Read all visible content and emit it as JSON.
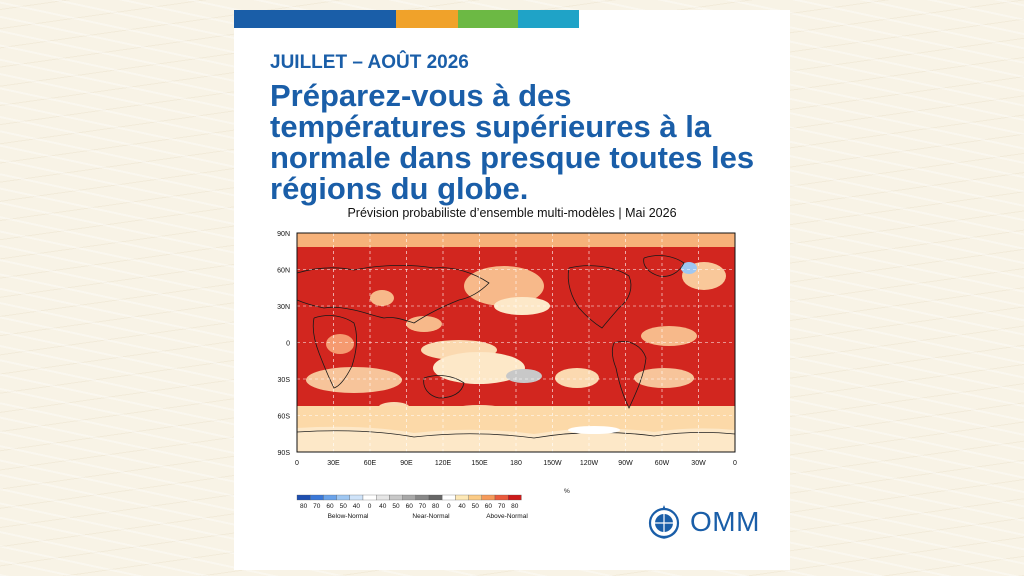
{
  "colors": {
    "brand_blue": "#1a5ea8",
    "stripe": [
      "#1a5ea8",
      "#f0a22a",
      "#6cb944",
      "#1fa3c7"
    ],
    "above_normal": [
      "#fde8b6",
      "#fbcb86",
      "#f69a5a",
      "#ea5a3c",
      "#cc1a1a"
    ],
    "near_normal": [
      "#e6e6e6",
      "#c8c8c8",
      "#a8a8a8",
      "#888888",
      "#666666"
    ],
    "below_normal": [
      "#1e4fb0",
      "#3a78d8",
      "#6aa3ea",
      "#9fc7f2",
      "#cfe3f9"
    ]
  },
  "header": {
    "period": "JUILLET – AOÛT 2026",
    "headline": "Préparez-vous à des températures supérieures à la normale dans presque toutes les régions du globe."
  },
  "map": {
    "subtitle": "Prévision probabiliste d’ensemble multi-modèles | Mai 2026",
    "lat_labels": [
      "90N",
      "60N",
      "30N",
      "0",
      "30S",
      "60S",
      "90S"
    ],
    "lon_labels": [
      "0",
      "30E",
      "60E",
      "90E",
      "120E",
      "150E",
      "180",
      "150W",
      "120W",
      "90W",
      "60W",
      "30W",
      "0"
    ]
  },
  "legend": {
    "below_values": [
      "80",
      "70",
      "60",
      "50",
      "40"
    ],
    "near_values": [
      "0",
      "40",
      "50",
      "60",
      "70",
      "80"
    ],
    "above_values": [
      "0",
      "40",
      "50",
      "60",
      "70",
      "80"
    ],
    "unit": "%",
    "below_label": "Below-Normal",
    "near_label": "Near-Normal",
    "above_label": "Above-Normal"
  },
  "logo": {
    "text": "OMM",
    "icon": "wmo-emblem-icon"
  }
}
